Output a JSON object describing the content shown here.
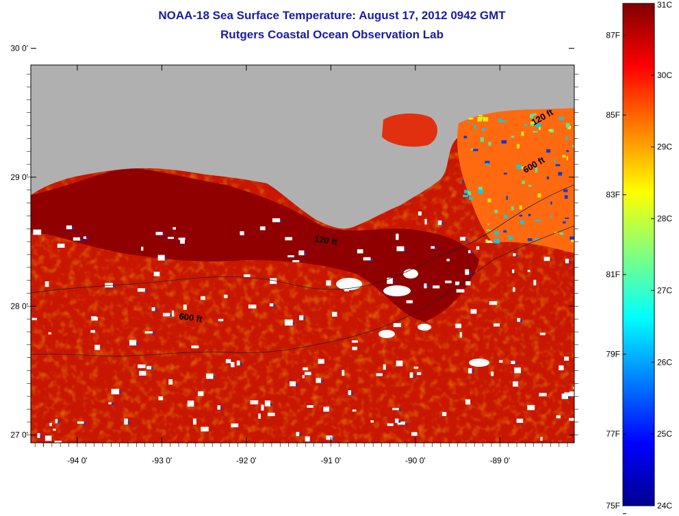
{
  "title": "NOAA-18 Sea Surface Temperature:  August 17, 2012 0942 GMT",
  "subtitle": "Rutgers Coastal Ocean Observation Lab",
  "map": {
    "lon_range": [
      -94.55,
      -88.12
    ],
    "lat_range": [
      26.94,
      29.87
    ],
    "lon_ticks": [
      {
        "value": -94,
        "label": "-94 0'"
      },
      {
        "value": -93,
        "label": "-93 0'"
      },
      {
        "value": -92,
        "label": "-92 0'"
      },
      {
        "value": -91,
        "label": "-91 0'"
      },
      {
        "value": -90,
        "label": "-90 0'"
      },
      {
        "value": -89,
        "label": "-89 0'"
      }
    ],
    "lat_ticks": [
      {
        "value": 30,
        "label": "30 0'"
      },
      {
        "value": 29,
        "label": "29 0'"
      },
      {
        "value": 28,
        "label": "28 0'"
      },
      {
        "value": 27,
        "label": "27 0'"
      }
    ],
    "contour_labels": [
      {
        "text": "120 ft",
        "lon": -91.2,
        "lat": 28.5
      },
      {
        "text": "600 ft",
        "lon": -92.8,
        "lat": 27.9
      },
      {
        "text": "120 ft",
        "lon": -88.6,
        "lat": 29.4
      },
      {
        "text": "600 ft",
        "lon": -88.7,
        "lat": 29.03
      }
    ],
    "colors": {
      "land": "#b0b0b0",
      "ocean_base": "#c81600",
      "ocean_dark": "#900000",
      "cloud": "#ffffff"
    }
  },
  "colorbar": {
    "celsius_range": [
      24,
      31
    ],
    "fahrenheit_range": [
      75,
      87.8
    ],
    "celsius_labels": [
      "31C",
      "30C",
      "29C",
      "28C",
      "27C",
      "26C",
      "25C",
      "24C"
    ],
    "fahrenheit_labels": [
      {
        "value": 87,
        "label": "87F"
      },
      {
        "value": 85,
        "label": "85F"
      },
      {
        "value": 83,
        "label": "83F"
      },
      {
        "value": 81,
        "label": "81F"
      },
      {
        "value": 79,
        "label": "79F"
      },
      {
        "value": 77,
        "label": "77F"
      },
      {
        "value": 75,
        "label": "75F"
      }
    ],
    "stops": [
      "#00008f",
      "#0000ff",
      "#0080ff",
      "#00ffff",
      "#80ff80",
      "#ffff00",
      "#ff8000",
      "#ff0000",
      "#800000"
    ]
  }
}
